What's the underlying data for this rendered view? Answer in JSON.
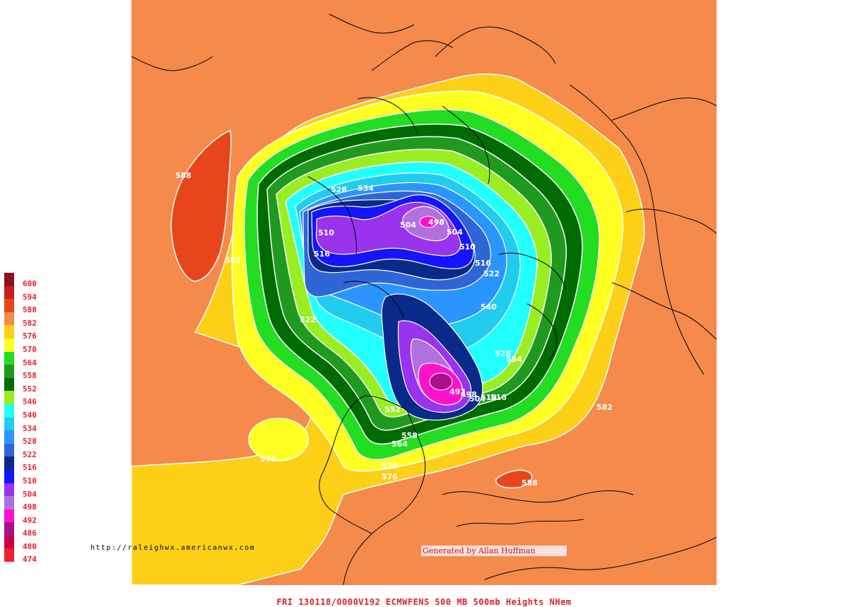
{
  "map": {
    "background_color": "#f58a4b",
    "coastline_color": "#000000",
    "contour_line_color": "#ffffff",
    "contour_labels": [
      "588",
      "582",
      "576",
      "588",
      "582",
      "528",
      "534",
      "510",
      "516",
      "522",
      "504",
      "498",
      "504",
      "510",
      "516",
      "522",
      "540",
      "528",
      "534",
      "492",
      "498",
      "504",
      "510",
      "516",
      "552",
      "558",
      "564",
      "570",
      "576"
    ]
  },
  "legend": {
    "items": [
      {
        "value": "600",
        "color": "#8b1020"
      },
      {
        "value": "594",
        "color": "#c81e1e"
      },
      {
        "value": "588",
        "color": "#e8461a"
      },
      {
        "value": "582",
        "color": "#f58a4b"
      },
      {
        "value": "576",
        "color": "#fdd017"
      },
      {
        "value": "570",
        "color": "#ffff22"
      },
      {
        "value": "564",
        "color": "#22dd22"
      },
      {
        "value": "558",
        "color": "#1f9a1f"
      },
      {
        "value": "552",
        "color": "#006b00"
      },
      {
        "value": "546",
        "color": "#99ee22"
      },
      {
        "value": "540",
        "color": "#22ffff"
      },
      {
        "value": "534",
        "color": "#22ccee"
      },
      {
        "value": "528",
        "color": "#2b95ff"
      },
      {
        "value": "522",
        "color": "#2e66d8"
      },
      {
        "value": "516",
        "color": "#0a2a8a"
      },
      {
        "value": "510",
        "color": "#1414ff"
      },
      {
        "value": "504",
        "color": "#9933ee"
      },
      {
        "value": "498",
        "color": "#b070e0"
      },
      {
        "value": "492",
        "color": "#ff11cc"
      },
      {
        "value": "486",
        "color": "#aa1188"
      },
      {
        "value": "480",
        "color": "#cc0044"
      },
      {
        "value": "474",
        "color": "#ee2233"
      }
    ]
  },
  "credits": {
    "url": "http://raleighwx.americanwx.com",
    "generated_by": "Generated by Allan Huffman"
  },
  "footer": {
    "caption": "FRI 130118/0000V192   ECMWFENS   500 MB 500mb Heights NHem"
  }
}
